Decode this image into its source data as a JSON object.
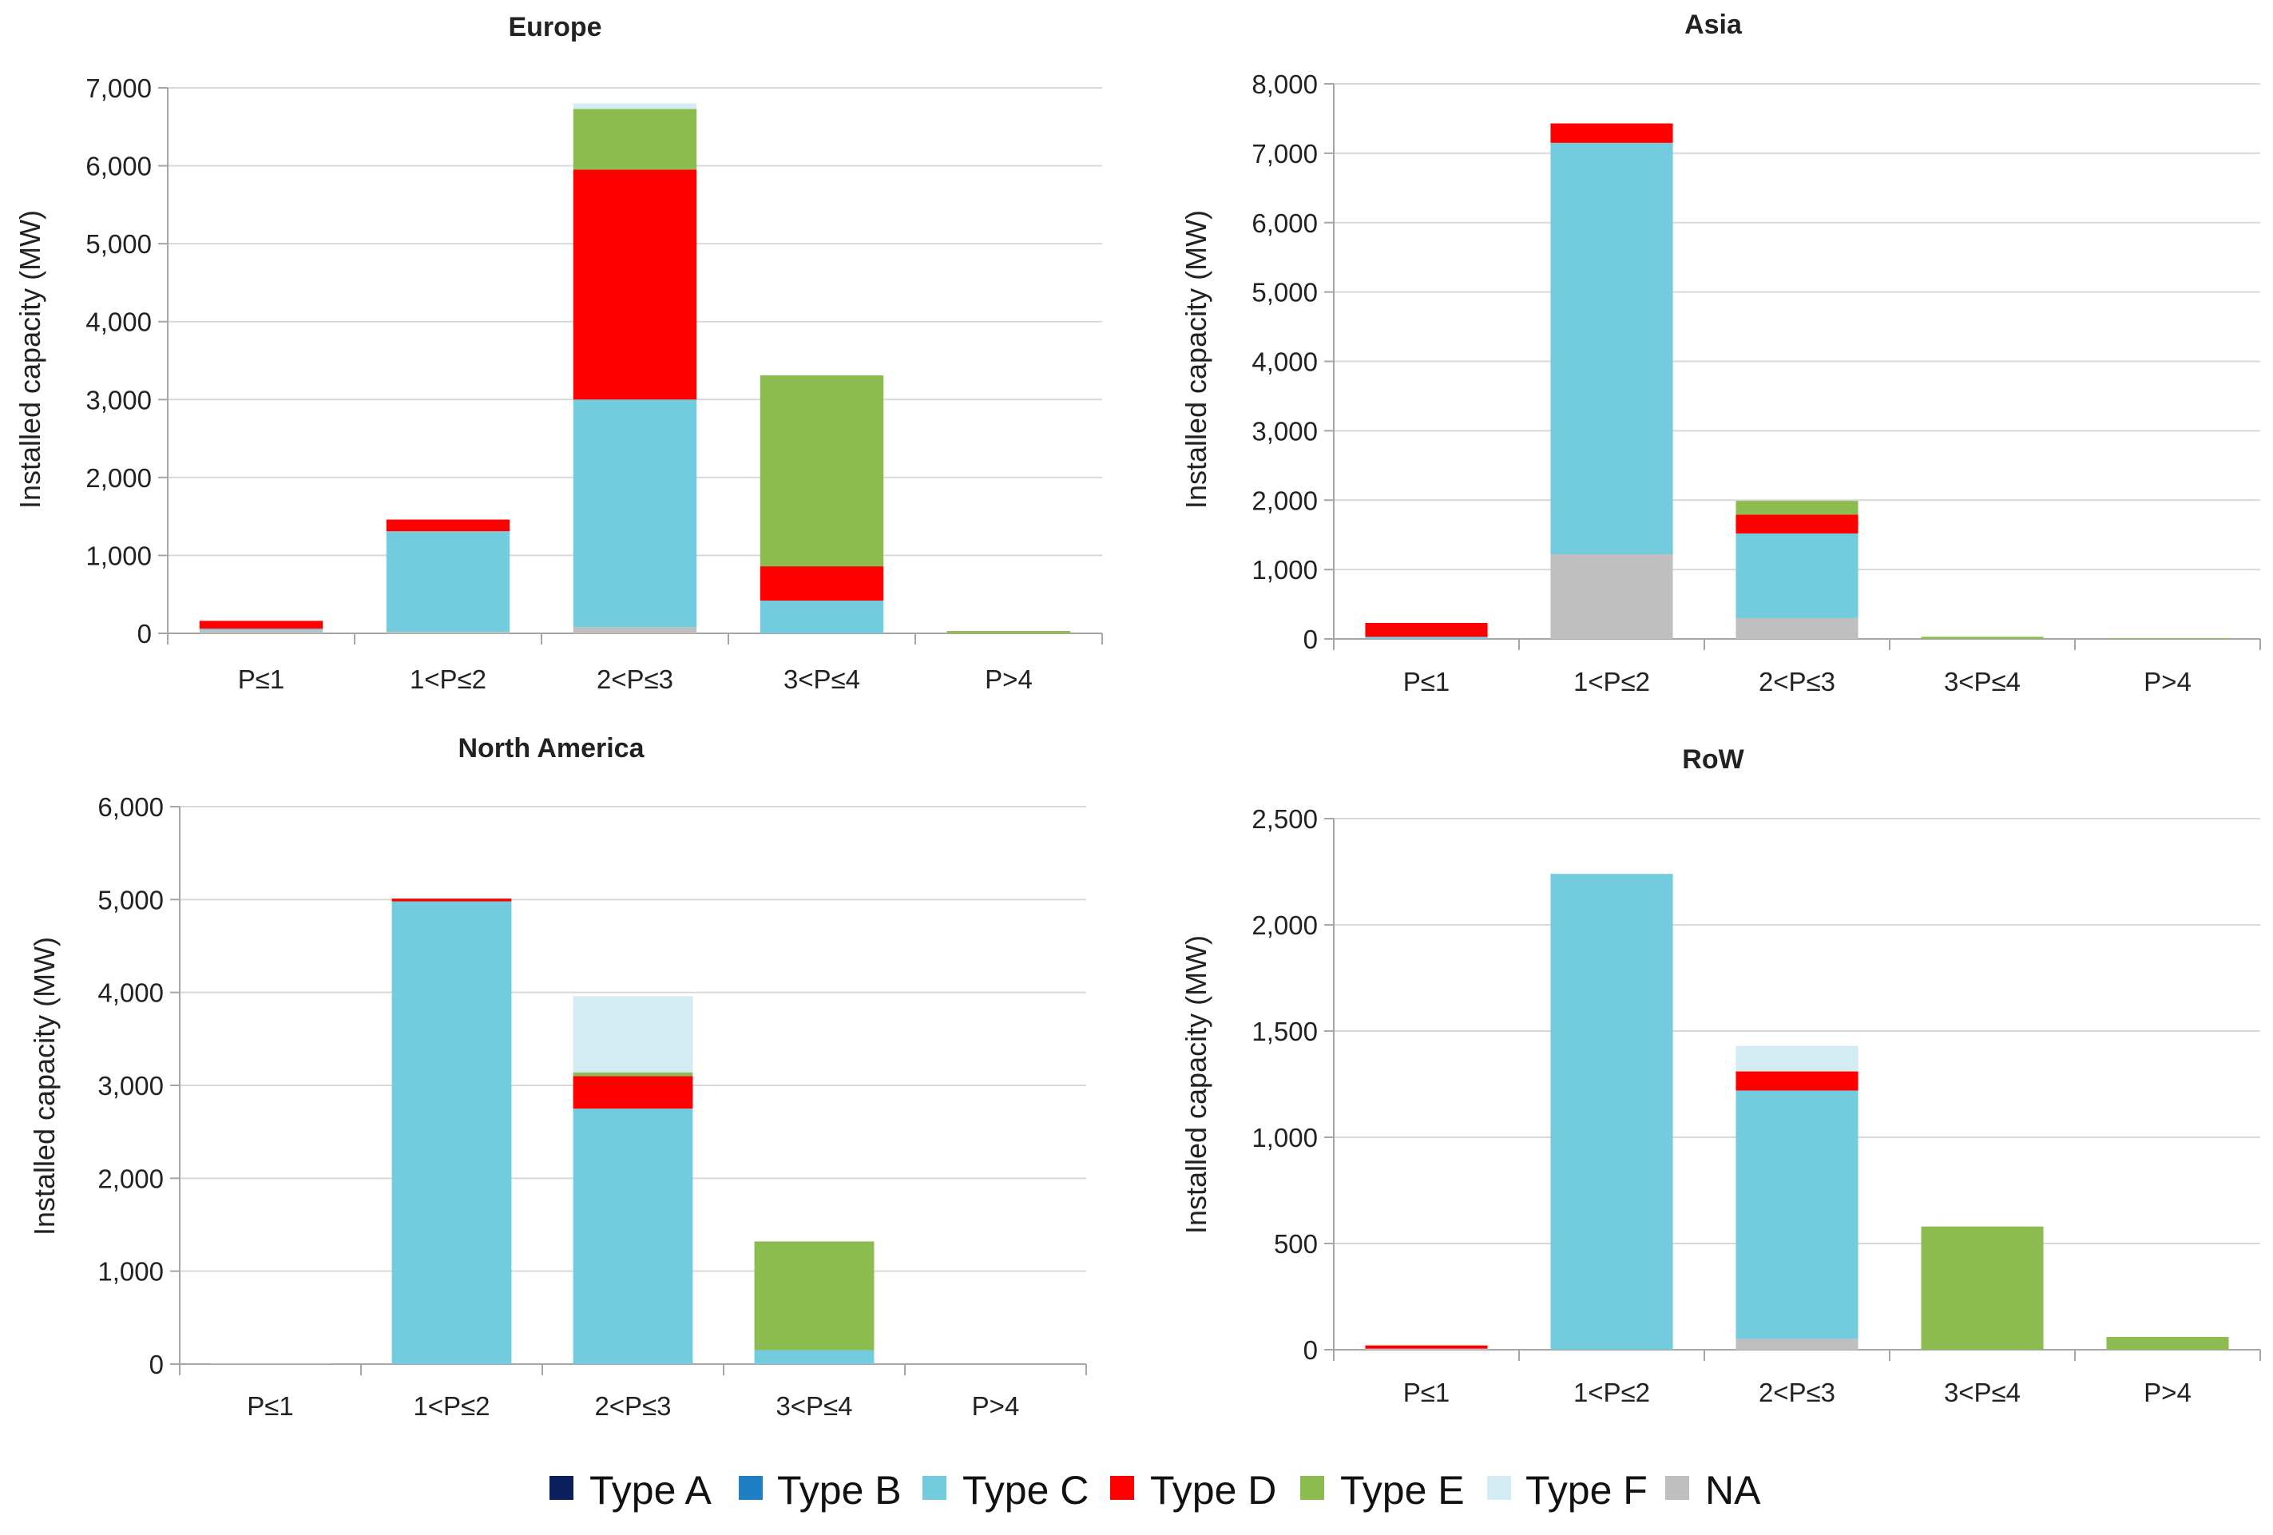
{
  "colors": {
    "Type A": "#0b1f5c",
    "Type B": "#1f7fc4",
    "Type C": "#73cbde",
    "Type D": "#ff0000",
    "Type E": "#8cbc4f",
    "Type F": "#d3ecf3",
    "NA": "#bfbfbf"
  },
  "legend": [
    "Type A",
    "Type B",
    "Type C",
    "Type D",
    "Type E",
    "Type F",
    "NA"
  ],
  "chart_data": [
    {
      "type": "bar",
      "stacked": true,
      "title": "Europe",
      "ylabel": "Installed capacity (MW)",
      "xlabel": "",
      "categories": [
        "P≤1",
        "1<P≤2",
        "2<P≤3",
        "3<P≤4",
        "P>4"
      ],
      "ylim": [
        0,
        7000
      ],
      "yticks": [
        "0",
        "1,000",
        "2,000",
        "3,000",
        "4,000",
        "5,000",
        "6,000",
        "7,000"
      ],
      "grid": true,
      "series": [
        {
          "name": "NA",
          "values": [
            40,
            20,
            80,
            0,
            0
          ]
        },
        {
          "name": "Type A",
          "values": [
            0,
            0,
            0,
            0,
            0
          ]
        },
        {
          "name": "Type B",
          "values": [
            0,
            0,
            0,
            0,
            0
          ]
        },
        {
          "name": "Type C",
          "values": [
            20,
            1290,
            2920,
            420,
            0
          ]
        },
        {
          "name": "Type D",
          "values": [
            100,
            150,
            2950,
            440,
            0
          ]
        },
        {
          "name": "Type E",
          "values": [
            0,
            0,
            780,
            2450,
            30
          ]
        },
        {
          "name": "Type F",
          "values": [
            0,
            0,
            70,
            0,
            0
          ]
        }
      ]
    },
    {
      "type": "bar",
      "stacked": true,
      "title": "Asia",
      "ylabel": "Installed capacity (MW)",
      "xlabel": "",
      "categories": [
        "P≤1",
        "1<P≤2",
        "2<P≤3",
        "3<P≤4",
        "P>4"
      ],
      "ylim": [
        0,
        8000
      ],
      "yticks": [
        "0",
        "1,000",
        "2,000",
        "3,000",
        "4,000",
        "5,000",
        "6,000",
        "7,000",
        "8,000"
      ],
      "grid": true,
      "series": [
        {
          "name": "NA",
          "values": [
            0,
            1220,
            300,
            0,
            0
          ]
        },
        {
          "name": "Type A",
          "values": [
            0,
            0,
            0,
            0,
            0
          ]
        },
        {
          "name": "Type B",
          "values": [
            0,
            0,
            0,
            0,
            0
          ]
        },
        {
          "name": "Type C",
          "values": [
            30,
            5930,
            1220,
            0,
            0
          ]
        },
        {
          "name": "Type D",
          "values": [
            200,
            280,
            270,
            0,
            0
          ]
        },
        {
          "name": "Type E",
          "values": [
            0,
            0,
            200,
            30,
            10
          ]
        },
        {
          "name": "Type F",
          "values": [
            0,
            0,
            0,
            0,
            0
          ]
        }
      ]
    },
    {
      "type": "bar",
      "stacked": true,
      "title": "North America",
      "ylabel": "Installed capacity (MW)",
      "xlabel": "",
      "categories": [
        "P≤1",
        "1<P≤2",
        "2<P≤3",
        "3<P≤4",
        "P>4"
      ],
      "ylim": [
        0,
        6000
      ],
      "yticks": [
        "0",
        "1,000",
        "2,000",
        "3,000",
        "4,000",
        "5,000",
        "6,000"
      ],
      "grid": true,
      "series": [
        {
          "name": "NA",
          "values": [
            10,
            0,
            0,
            0,
            0
          ]
        },
        {
          "name": "Type A",
          "values": [
            0,
            0,
            0,
            0,
            0
          ]
        },
        {
          "name": "Type B",
          "values": [
            0,
            0,
            0,
            0,
            0
          ]
        },
        {
          "name": "Type C",
          "values": [
            0,
            4980,
            2750,
            150,
            0
          ]
        },
        {
          "name": "Type D",
          "values": [
            0,
            30,
            350,
            0,
            0
          ]
        },
        {
          "name": "Type E",
          "values": [
            0,
            0,
            40,
            1170,
            0
          ]
        },
        {
          "name": "Type F",
          "values": [
            0,
            0,
            820,
            0,
            0
          ]
        }
      ]
    },
    {
      "type": "bar",
      "stacked": true,
      "title": "RoW",
      "ylabel": "Installed capacity (MW)",
      "xlabel": "",
      "categories": [
        "P≤1",
        "1<P≤2",
        "2<P≤3",
        "3<P≤4",
        "P>4"
      ],
      "ylim": [
        0,
        2500
      ],
      "yticks": [
        "0",
        "500",
        "1,000",
        "1,500",
        "2,000",
        "2,500"
      ],
      "grid": true,
      "series": [
        {
          "name": "NA",
          "values": [
            5,
            0,
            50,
            0,
            0
          ]
        },
        {
          "name": "Type A",
          "values": [
            0,
            0,
            0,
            0,
            0
          ]
        },
        {
          "name": "Type B",
          "values": [
            0,
            0,
            0,
            0,
            0
          ]
        },
        {
          "name": "Type C",
          "values": [
            0,
            2240,
            1170,
            0,
            0
          ]
        },
        {
          "name": "Type D",
          "values": [
            15,
            0,
            90,
            0,
            0
          ]
        },
        {
          "name": "Type E",
          "values": [
            0,
            0,
            0,
            580,
            60
          ]
        },
        {
          "name": "Type F",
          "values": [
            0,
            0,
            120,
            0,
            0
          ]
        }
      ]
    }
  ]
}
